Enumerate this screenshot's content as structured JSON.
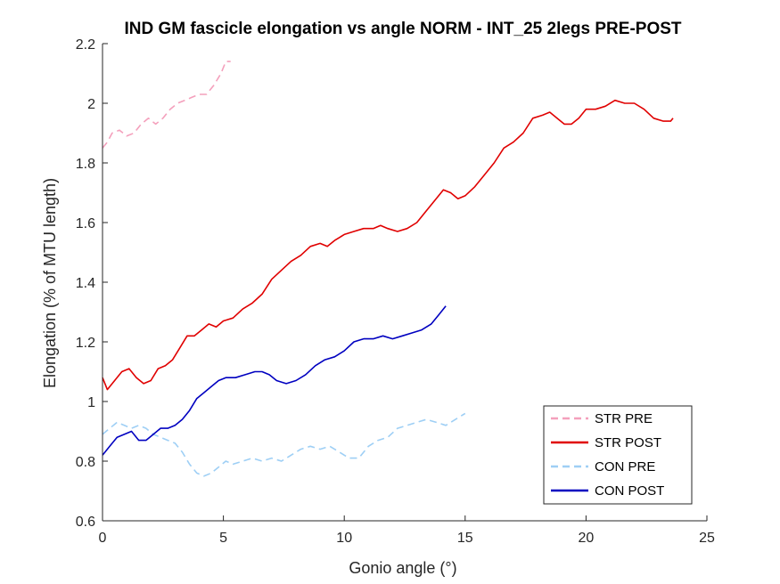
{
  "chart_data": {
    "type": "line",
    "title": "IND GM fascicle elongation vs angle NORM - INT_25 2legs PRE-POST",
    "xlabel": "Gonio angle (°)",
    "ylabel": "Elongation (% of MTU length)",
    "xlim": [
      0,
      25
    ],
    "ylim": [
      0.6,
      2.2
    ],
    "xticks": [
      "0",
      "5",
      "10",
      "15",
      "20",
      "25"
    ],
    "yticks": [
      "0.6",
      "0.8",
      "1",
      "1.2",
      "1.4",
      "1.6",
      "1.8",
      "2",
      "2.2"
    ],
    "grid": false,
    "legend_position": "bottom-right",
    "series": [
      {
        "name": "STR PRE",
        "color": "#f4a0bc",
        "dash": "dashed",
        "points": [
          [
            0,
            1.85
          ],
          [
            0.2,
            1.87
          ],
          [
            0.4,
            1.9
          ],
          [
            0.7,
            1.91
          ],
          [
            1.0,
            1.89
          ],
          [
            1.3,
            1.9
          ],
          [
            1.6,
            1.93
          ],
          [
            1.9,
            1.95
          ],
          [
            2.2,
            1.93
          ],
          [
            2.5,
            1.95
          ],
          [
            2.8,
            1.98
          ],
          [
            3.1,
            2.0
          ],
          [
            3.4,
            2.01
          ],
          [
            3.7,
            2.02
          ],
          [
            4.0,
            2.03
          ],
          [
            4.3,
            2.03
          ],
          [
            4.6,
            2.06
          ],
          [
            4.9,
            2.1
          ],
          [
            5.1,
            2.14
          ],
          [
            5.3,
            2.14
          ]
        ]
      },
      {
        "name": "STR POST",
        "color": "#e00000",
        "dash": "solid",
        "points": [
          [
            0,
            1.08
          ],
          [
            0.2,
            1.04
          ],
          [
            0.5,
            1.07
          ],
          [
            0.8,
            1.1
          ],
          [
            1.1,
            1.11
          ],
          [
            1.4,
            1.08
          ],
          [
            1.7,
            1.06
          ],
          [
            2.0,
            1.07
          ],
          [
            2.3,
            1.11
          ],
          [
            2.6,
            1.12
          ],
          [
            2.9,
            1.14
          ],
          [
            3.2,
            1.18
          ],
          [
            3.5,
            1.22
          ],
          [
            3.8,
            1.22
          ],
          [
            4.1,
            1.24
          ],
          [
            4.4,
            1.26
          ],
          [
            4.7,
            1.25
          ],
          [
            5.0,
            1.27
          ],
          [
            5.4,
            1.28
          ],
          [
            5.8,
            1.31
          ],
          [
            6.2,
            1.33
          ],
          [
            6.6,
            1.36
          ],
          [
            7.0,
            1.41
          ],
          [
            7.4,
            1.44
          ],
          [
            7.8,
            1.47
          ],
          [
            8.2,
            1.49
          ],
          [
            8.6,
            1.52
          ],
          [
            9.0,
            1.53
          ],
          [
            9.3,
            1.52
          ],
          [
            9.6,
            1.54
          ],
          [
            10.0,
            1.56
          ],
          [
            10.4,
            1.57
          ],
          [
            10.8,
            1.58
          ],
          [
            11.2,
            1.58
          ],
          [
            11.5,
            1.59
          ],
          [
            11.8,
            1.58
          ],
          [
            12.2,
            1.57
          ],
          [
            12.6,
            1.58
          ],
          [
            13.0,
            1.6
          ],
          [
            13.4,
            1.64
          ],
          [
            13.8,
            1.68
          ],
          [
            14.1,
            1.71
          ],
          [
            14.4,
            1.7
          ],
          [
            14.7,
            1.68
          ],
          [
            15.0,
            1.69
          ],
          [
            15.4,
            1.72
          ],
          [
            15.8,
            1.76
          ],
          [
            16.2,
            1.8
          ],
          [
            16.6,
            1.85
          ],
          [
            17.0,
            1.87
          ],
          [
            17.4,
            1.9
          ],
          [
            17.8,
            1.95
          ],
          [
            18.2,
            1.96
          ],
          [
            18.5,
            1.97
          ],
          [
            18.8,
            1.95
          ],
          [
            19.1,
            1.93
          ],
          [
            19.4,
            1.93
          ],
          [
            19.7,
            1.95
          ],
          [
            20.0,
            1.98
          ],
          [
            20.4,
            1.98
          ],
          [
            20.8,
            1.99
          ],
          [
            21.2,
            2.01
          ],
          [
            21.6,
            2.0
          ],
          [
            22.0,
            2.0
          ],
          [
            22.4,
            1.98
          ],
          [
            22.8,
            1.95
          ],
          [
            23.2,
            1.94
          ],
          [
            23.5,
            1.94
          ],
          [
            23.6,
            1.95
          ]
        ]
      },
      {
        "name": "CON PRE",
        "color": "#9ecff5",
        "dash": "dashed",
        "points": [
          [
            0,
            0.89
          ],
          [
            0.3,
            0.91
          ],
          [
            0.6,
            0.93
          ],
          [
            0.9,
            0.92
          ],
          [
            1.2,
            0.91
          ],
          [
            1.5,
            0.92
          ],
          [
            1.8,
            0.91
          ],
          [
            2.1,
            0.89
          ],
          [
            2.4,
            0.88
          ],
          [
            2.7,
            0.87
          ],
          [
            3.0,
            0.86
          ],
          [
            3.3,
            0.83
          ],
          [
            3.6,
            0.79
          ],
          [
            3.9,
            0.76
          ],
          [
            4.2,
            0.75
          ],
          [
            4.5,
            0.76
          ],
          [
            4.8,
            0.78
          ],
          [
            5.1,
            0.8
          ],
          [
            5.4,
            0.79
          ],
          [
            5.8,
            0.8
          ],
          [
            6.2,
            0.81
          ],
          [
            6.6,
            0.8
          ],
          [
            7.0,
            0.81
          ],
          [
            7.4,
            0.8
          ],
          [
            7.8,
            0.82
          ],
          [
            8.2,
            0.84
          ],
          [
            8.6,
            0.85
          ],
          [
            9.0,
            0.84
          ],
          [
            9.4,
            0.85
          ],
          [
            9.8,
            0.83
          ],
          [
            10.2,
            0.81
          ],
          [
            10.6,
            0.81
          ],
          [
            11.0,
            0.85
          ],
          [
            11.4,
            0.87
          ],
          [
            11.8,
            0.88
          ],
          [
            12.2,
            0.91
          ],
          [
            12.6,
            0.92
          ],
          [
            13.0,
            0.93
          ],
          [
            13.4,
            0.94
          ],
          [
            13.8,
            0.93
          ],
          [
            14.2,
            0.92
          ],
          [
            14.6,
            0.94
          ],
          [
            15.0,
            0.96
          ]
        ]
      },
      {
        "name": "CON POST",
        "color": "#0000c0",
        "dash": "solid",
        "points": [
          [
            0,
            0.82
          ],
          [
            0.3,
            0.85
          ],
          [
            0.6,
            0.88
          ],
          [
            0.9,
            0.89
          ],
          [
            1.2,
            0.9
          ],
          [
            1.5,
            0.87
          ],
          [
            1.8,
            0.87
          ],
          [
            2.1,
            0.89
          ],
          [
            2.4,
            0.91
          ],
          [
            2.7,
            0.91
          ],
          [
            3.0,
            0.92
          ],
          [
            3.3,
            0.94
          ],
          [
            3.6,
            0.97
          ],
          [
            3.9,
            1.01
          ],
          [
            4.2,
            1.03
          ],
          [
            4.5,
            1.05
          ],
          [
            4.8,
            1.07
          ],
          [
            5.1,
            1.08
          ],
          [
            5.5,
            1.08
          ],
          [
            5.9,
            1.09
          ],
          [
            6.3,
            1.1
          ],
          [
            6.6,
            1.1
          ],
          [
            6.9,
            1.09
          ],
          [
            7.2,
            1.07
          ],
          [
            7.6,
            1.06
          ],
          [
            8.0,
            1.07
          ],
          [
            8.4,
            1.09
          ],
          [
            8.8,
            1.12
          ],
          [
            9.2,
            1.14
          ],
          [
            9.6,
            1.15
          ],
          [
            10.0,
            1.17
          ],
          [
            10.4,
            1.2
          ],
          [
            10.8,
            1.21
          ],
          [
            11.2,
            1.21
          ],
          [
            11.6,
            1.22
          ],
          [
            12.0,
            1.21
          ],
          [
            12.4,
            1.22
          ],
          [
            12.8,
            1.23
          ],
          [
            13.2,
            1.24
          ],
          [
            13.6,
            1.26
          ],
          [
            13.9,
            1.29
          ],
          [
            14.2,
            1.32
          ]
        ]
      }
    ]
  }
}
